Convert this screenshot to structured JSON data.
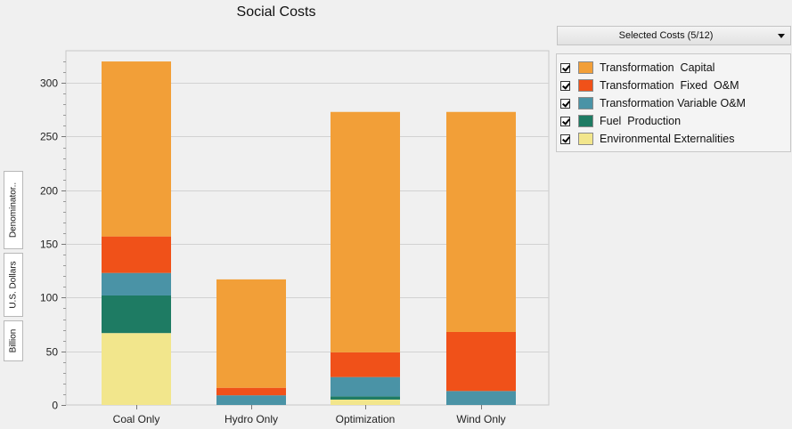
{
  "chart_data": {
    "type": "bar",
    "stacked": true,
    "title": "Social Costs",
    "categories": [
      "Coal Only",
      "Hydro Only",
      "Optimization",
      "Wind Only"
    ],
    "series": [
      {
        "name": "Environmental Externalities",
        "color": "#f2e68c",
        "values": [
          67,
          0,
          5,
          0
        ]
      },
      {
        "name": "Fuel Production",
        "color": "#1e7b63",
        "values": [
          35,
          0,
          3,
          0
        ]
      },
      {
        "name": "Transformation Variable O&M",
        "color": "#4a93a6",
        "values": [
          21,
          9,
          18,
          13
        ]
      },
      {
        "name": "Transformation  Fixed  O&M",
        "color": "#f05119",
        "values": [
          34,
          7,
          23,
          55
        ]
      },
      {
        "name": "Transformation  Capital",
        "color": "#f29f38",
        "values": [
          163,
          101,
          224,
          205
        ]
      }
    ],
    "ylim": [
      0,
      320
    ],
    "yticks": [
      0,
      50,
      100,
      150,
      200,
      250,
      300
    ],
    "grid": true
  },
  "legend": {
    "items": [
      {
        "label": "Transformation  Capital",
        "color": "#f29f38"
      },
      {
        "label": "Transformation  Fixed  O&M",
        "color": "#f05119"
      },
      {
        "label": "Transformation Variable O&M",
        "color": "#4a93a6"
      },
      {
        "label": "Fuel  Production",
        "color": "#1e7b63"
      },
      {
        "label": "Environmental Externalities",
        "color": "#f2e68c"
      }
    ]
  },
  "controls": {
    "selected_costs_label": "Selected Costs (5/12)"
  },
  "side_tabs": {
    "denominator": "Denominator..",
    "currency": "U.S. Dollars",
    "magnitude": "Billion"
  }
}
